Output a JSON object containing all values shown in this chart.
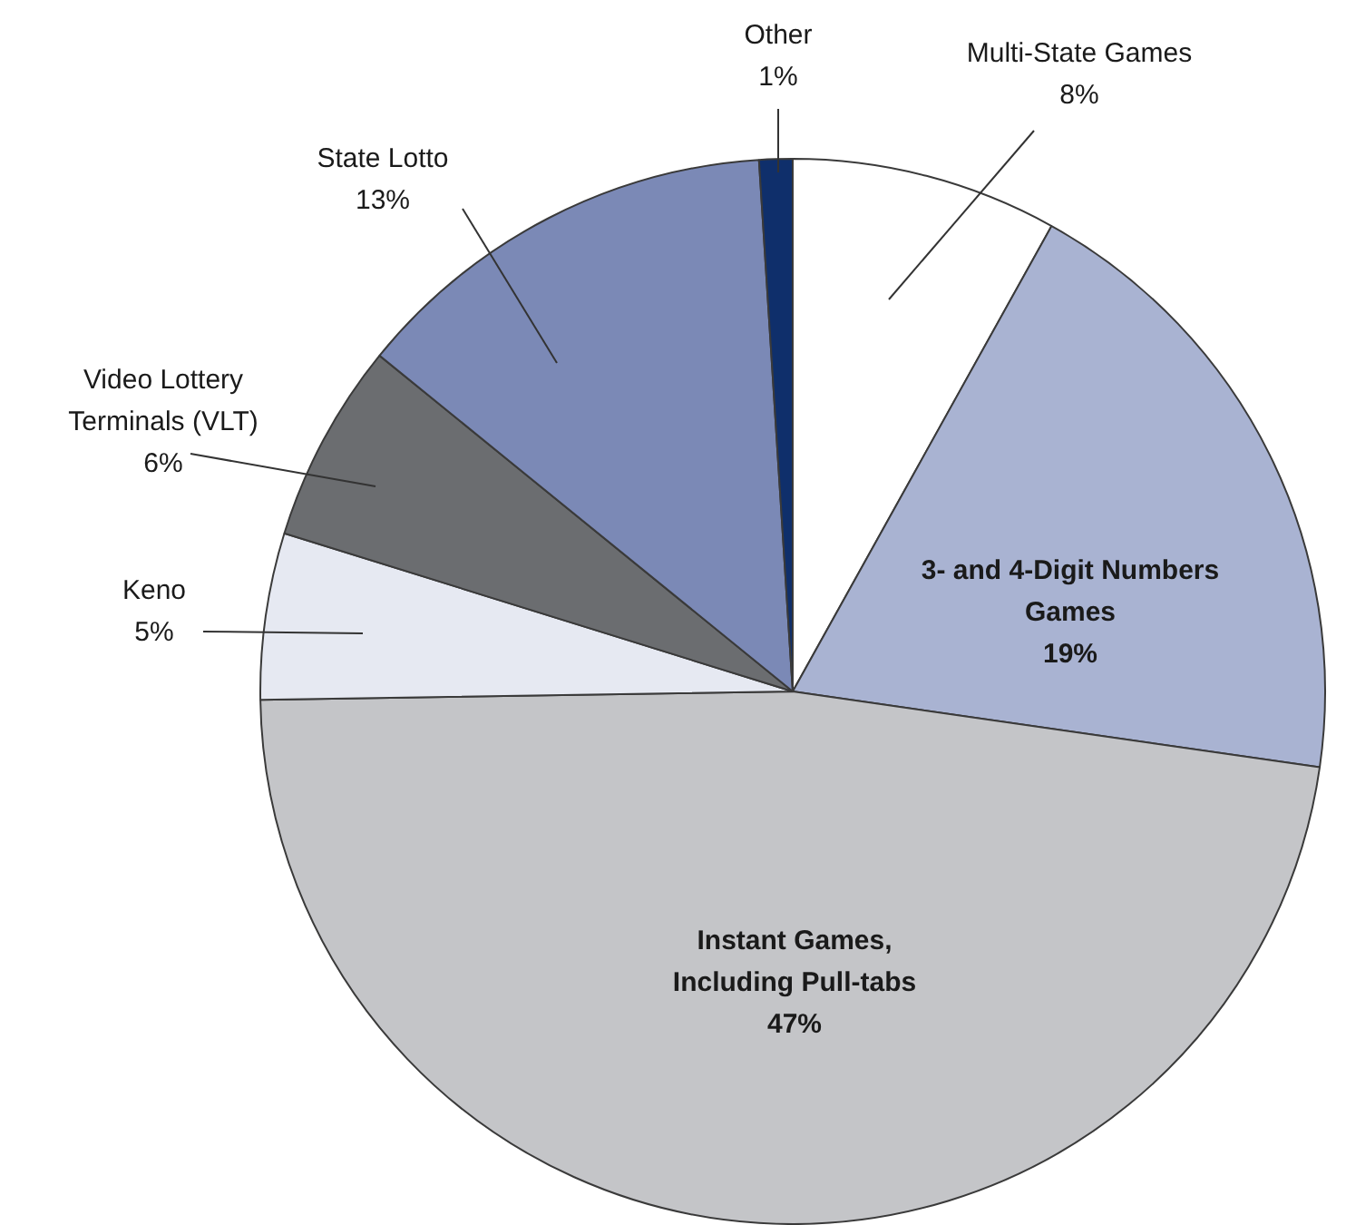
{
  "chart_data": {
    "type": "pie",
    "categories": [
      "Multi-State Games",
      "3- and 4-Digit Numbers Games",
      "Instant Games, Including Pull-tabs",
      "Keno",
      "Video Lottery Terminals (VLT)",
      "State Lotto",
      "Other"
    ],
    "values": [
      8,
      19,
      47,
      5,
      6,
      13,
      1
    ],
    "value_labels": [
      "8%",
      "19%",
      "47%",
      "5%",
      "6%",
      "13%",
      "1%"
    ],
    "colors": [
      "#ffffff",
      "#a9b3d2",
      "#c4c5c8",
      "#e6e9f2",
      "#6b6d70",
      "#7b89b6",
      "#0f2f6b"
    ],
    "legend": false
  }
}
